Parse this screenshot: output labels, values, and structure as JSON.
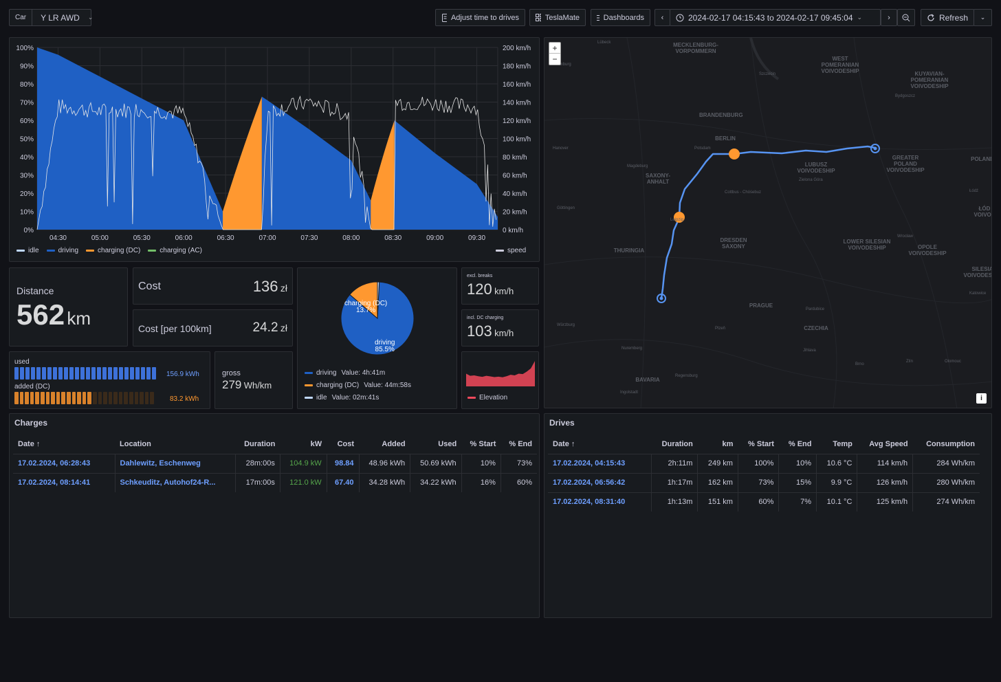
{
  "toolbar": {
    "car_label": "Car",
    "car_value": "Y LR AWD",
    "adjust_label": "Adjust time to drives",
    "teslamate_label": "TeslaMate",
    "dashboards_label": "Dashboards",
    "time_range": "2024-02-17 04:15:43 to 2024-02-17 09:45:04",
    "refresh_label": "Refresh"
  },
  "state_chart": {
    "left_ticks": [
      "100%",
      "90%",
      "80%",
      "70%",
      "60%",
      "50%",
      "40%",
      "30%",
      "20%",
      "10%",
      "0%"
    ],
    "right_ticks": [
      "200 km/h",
      "180 km/h",
      "160 km/h",
      "140 km/h",
      "120 km/h",
      "100 km/h",
      "80 km/h",
      "60 km/h",
      "40 km/h",
      "20 km/h",
      "0 km/h"
    ],
    "x_ticks": [
      "04:30",
      "05:00",
      "05:30",
      "06:00",
      "06:30",
      "07:00",
      "07:30",
      "08:00",
      "08:30",
      "09:00",
      "09:30"
    ],
    "legend": [
      "idle",
      "driving",
      "charging (DC)",
      "charging (AC)"
    ],
    "legend_right": "speed"
  },
  "colors": {
    "driving": "#1f60c4",
    "charging": "#ff9830",
    "idle": "#c0d8ff",
    "ac": "#73bf69",
    "elevation": "#f2495c",
    "link": "#6e9fff"
  },
  "chart_data": [
    {
      "type": "area",
      "title": "",
      "xlabel": "",
      "ylabel": "",
      "ylim": [
        0,
        100
      ],
      "y2lim": [
        0,
        200
      ],
      "x": [
        "04:15",
        "04:30",
        "05:00",
        "05:30",
        "06:00",
        "06:28",
        "06:56",
        "07:00",
        "07:30",
        "08:00",
        "08:14",
        "08:31",
        "09:00",
        "09:30",
        "09:45"
      ],
      "series": [
        {
          "name": "driving",
          "values": [
            100,
            96,
            84,
            72,
            60,
            10,
            73,
            71,
            55,
            38,
            16,
            60,
            42,
            25,
            7
          ]
        },
        {
          "name": "charging (DC)",
          "values": [
            null,
            null,
            null,
            null,
            null,
            10,
            73,
            null,
            null,
            null,
            16,
            60,
            null,
            null,
            null
          ]
        },
        {
          "name": "speed",
          "values": [
            0,
            135,
            130,
            132,
            128,
            0,
            0,
            130,
            140,
            125,
            0,
            140,
            138,
            135,
            0
          ]
        }
      ],
      "legend": "bottom"
    },
    {
      "type": "pie",
      "categories": [
        "driving",
        "charging (DC)",
        "idle"
      ],
      "values": [
        85.5,
        13.7,
        0.8
      ],
      "labels": [
        "85.5%",
        "13.7%"
      ],
      "durations": [
        "4h:41m",
        "44m:58s",
        "02m:41s"
      ]
    },
    {
      "type": "area",
      "title": "",
      "series": [
        {
          "name": "Elevation",
          "values": [
            60,
            50,
            52,
            48,
            45,
            50,
            47,
            44,
            46,
            43,
            48,
            55,
            52,
            60,
            58,
            70,
            85,
            120
          ]
        }
      ],
      "legend": "bottom"
    }
  ],
  "stats": {
    "distance_label": "Distance",
    "distance_value": "562",
    "distance_unit": "km",
    "cost_label": "Cost",
    "cost_value": "136",
    "cost_unit": "zł",
    "cost100_label": "Cost [per 100km]",
    "cost100_value": "24.2",
    "cost100_unit": "zł",
    "speed1_note": "excl. breaks",
    "speed1_value": "120",
    "speed1_unit": "km/h",
    "speed2_note": "incl. DC charging",
    "speed2_value": "103",
    "speed2_unit": "km/h",
    "used_label": "used",
    "used_value": "156.9 kWh",
    "added_label": "added (DC)",
    "added_value": "83.2 kWh",
    "used_fill": 1.0,
    "added_fill": 0.53,
    "gross_label": "gross",
    "gross_value": "279",
    "gross_unit": "Wh/km"
  },
  "pie_legend": {
    "driving": "driving",
    "driving_value": "Value: 4h:41m",
    "charging": "charging (DC)",
    "charging_value": "Value: 44m:58s",
    "idle": "idle",
    "idle_value": "Value: 02m:41s",
    "label_driving": "driving",
    "label_charging": "charging (DC)",
    "pct_driving": "85.5%",
    "pct_charging": "13.7%"
  },
  "elevation_legend": "Elevation",
  "map": {
    "zoom_in": "+",
    "zoom_out": "−",
    "info": "i",
    "regions": [
      {
        "name": "MECKLENBURG-VORPOMMERN"
      },
      {
        "name": "WEST POMERANIAN VOIVODESHIP"
      },
      {
        "name": "KUYAVIAN-POMERANIAN VOIVODESHIP"
      },
      {
        "name": "BRANDENBURG"
      },
      {
        "name": "BERLIN"
      },
      {
        "name": "LUBUSZ VOIVODESHIP"
      },
      {
        "name": "GREATER POLAND VOIVODESHIP"
      },
      {
        "name": "POLAND"
      },
      {
        "name": "SAXONY-ANHALT"
      },
      {
        "name": "DRESDEN SAXONY"
      },
      {
        "name": "LOWER SILESIAN VOIVODESHIP"
      },
      {
        "name": "OPOLE VOIVODESHIP"
      },
      {
        "name": "THURINGIA"
      },
      {
        "name": "PRAGUE"
      },
      {
        "name": "CZECHIA"
      },
      {
        "name": "BAVARIA"
      },
      {
        "name": "SILESIA VOIVODESHIP"
      },
      {
        "name": "ŁÓD VOIVOD"
      }
    ],
    "cities": [
      "Lübeck",
      "Hamburg",
      "Szczecin",
      "Bydgoszcz",
      "Hanover",
      "Magdeburg",
      "Potsdam",
      "Zielona Góra",
      "Cottbus - Chóśebuz",
      "Göttingen",
      "Leipzig",
      "Wrocław",
      "Łódź",
      "Würzburg",
      "Plzeň",
      "Nuremberg",
      "Regensburg",
      "Ingolstadt",
      "Jihlava",
      "Brno",
      "Zlín",
      "Olomouc",
      "Katowice",
      "Pardubice"
    ]
  },
  "charges": {
    "title": "Charges",
    "headers": [
      "Date ↑",
      "Location",
      "Duration",
      "kW",
      "Cost",
      "Added",
      "Used",
      "% Start",
      "% End"
    ],
    "rows": [
      [
        "17.02.2024, 06:28:43",
        "Dahlewitz, Eschenweg",
        "28m:00s",
        "104.9 kW",
        "98.84",
        "48.96 kWh",
        "50.69 kWh",
        "10%",
        "73%"
      ],
      [
        "17.02.2024, 08:14:41",
        "Schkeuditz, Autohof24-R...",
        "17m:00s",
        "121.0 kW",
        "67.40",
        "34.28 kWh",
        "34.22 kWh",
        "16%",
        "60%"
      ]
    ]
  },
  "drives": {
    "title": "Drives",
    "headers": [
      "Date ↑",
      "Duration",
      "km",
      "% Start",
      "% End",
      "Temp",
      "Avg Speed",
      "Consumption"
    ],
    "rows": [
      [
        "17.02.2024, 04:15:43",
        "2h:11m",
        "249 km",
        "100%",
        "10%",
        "10.6 °C",
        "114 km/h",
        "284 Wh/km"
      ],
      [
        "17.02.2024, 06:56:42",
        "1h:17m",
        "162 km",
        "73%",
        "15%",
        "9.9 °C",
        "126 km/h",
        "280 Wh/km"
      ],
      [
        "17.02.2024, 08:31:40",
        "1h:13m",
        "151 km",
        "60%",
        "7%",
        "10.1 °C",
        "125 km/h",
        "274 Wh/km"
      ]
    ]
  }
}
